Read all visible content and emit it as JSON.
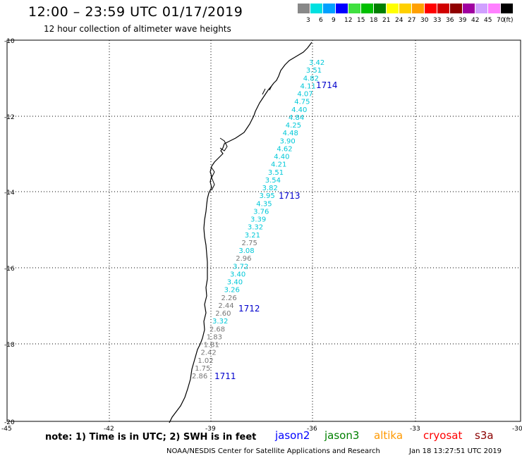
{
  "header": {
    "title": "12:00 – 23:59 UTC 01/17/2019",
    "subtitle": "12 hour collection of altimeter wave heights"
  },
  "legend": {
    "unit": "(ft)",
    "bins": [
      {
        "label": "3",
        "color": "#888888"
      },
      {
        "label": "6",
        "color": "#00e0e0"
      },
      {
        "label": "9",
        "color": "#00a0ff"
      },
      {
        "label": "12",
        "color": "#0000ff"
      },
      {
        "label": "15",
        "color": "#40e040"
      },
      {
        "label": "18",
        "color": "#00c000"
      },
      {
        "label": "21",
        "color": "#008000"
      },
      {
        "label": "24",
        "color": "#ffff00"
      },
      {
        "label": "27",
        "color": "#ffd000"
      },
      {
        "label": "30",
        "color": "#ffa000"
      },
      {
        "label": "33",
        "color": "#ff0000"
      },
      {
        "label": "36",
        "color": "#d00000"
      },
      {
        "label": "39",
        "color": "#900000"
      },
      {
        "label": "42",
        "color": "#a000a0"
      },
      {
        "label": "45",
        "color": "#d0a0ff"
      },
      {
        "label": "70",
        "color": "#ff80ff"
      },
      {
        "label": "",
        "color": "#000000"
      }
    ]
  },
  "map": {
    "lon_labels": [
      "-45",
      "-42",
      "-39",
      "-36",
      "-33",
      "-30"
    ],
    "lat_labels": [
      "-10",
      "-12",
      "-14",
      "-16",
      "-18",
      "-20"
    ],
    "passes": [
      {
        "id": "1714",
        "color": "#0000cc"
      },
      {
        "id": "1713",
        "color": "#0000cc"
      },
      {
        "id": "1712",
        "color": "#0000cc"
      },
      {
        "id": "1711",
        "color": "#0000cc"
      }
    ],
    "wave_heights": [
      {
        "v": "3.42",
        "c": "#00c8d8"
      },
      {
        "v": "3.51",
        "c": "#00c8d8"
      },
      {
        "v": "4.82",
        "c": "#00c8d8"
      },
      {
        "v": "4.11",
        "c": "#00c8d8"
      },
      {
        "v": "4.07",
        "c": "#00c8d8"
      },
      {
        "v": "4.75",
        "c": "#00c8d8"
      },
      {
        "v": "4.40",
        "c": "#00c8d8"
      },
      {
        "v": "4.84",
        "c": "#00c8d8"
      },
      {
        "v": "4.25",
        "c": "#00c8d8"
      },
      {
        "v": "4.48",
        "c": "#00c8d8"
      },
      {
        "v": "3.90",
        "c": "#00c8d8"
      },
      {
        "v": "4.62",
        "c": "#00c8d8"
      },
      {
        "v": "4.40",
        "c": "#00c8d8"
      },
      {
        "v": "4.21",
        "c": "#00c8d8"
      },
      {
        "v": "3.51",
        "c": "#00c8d8"
      },
      {
        "v": "3.54",
        "c": "#00c8d8"
      },
      {
        "v": "3.82",
        "c": "#00c8d8"
      },
      {
        "v": "3.95",
        "c": "#00c8d8"
      },
      {
        "v": "4.35",
        "c": "#00c8d8"
      },
      {
        "v": "3.76",
        "c": "#00c8d8"
      },
      {
        "v": "3.39",
        "c": "#00c8d8"
      },
      {
        "v": "3.32",
        "c": "#00c8d8"
      },
      {
        "v": "3.21",
        "c": "#00c8d8"
      },
      {
        "v": "2.75",
        "c": "#777777"
      },
      {
        "v": "3.08",
        "c": "#00c8d8"
      },
      {
        "v": "2.96",
        "c": "#777777"
      },
      {
        "v": "3.72",
        "c": "#00c8d8"
      },
      {
        "v": "3.40",
        "c": "#00c8d8"
      },
      {
        "v": "3.40",
        "c": "#00c8d8"
      },
      {
        "v": "3.26",
        "c": "#00c8d8"
      },
      {
        "v": "2.26",
        "c": "#777777"
      },
      {
        "v": "2.44",
        "c": "#777777"
      },
      {
        "v": "2.60",
        "c": "#777777"
      },
      {
        "v": "3.32",
        "c": "#00c8d8"
      },
      {
        "v": "2.68",
        "c": "#777777"
      },
      {
        "v": "1.83",
        "c": "#777777"
      },
      {
        "v": "1.81",
        "c": "#777777"
      },
      {
        "v": "2.42",
        "c": "#777777"
      },
      {
        "v": "1.02",
        "c": "#777777"
      },
      {
        "v": "1.75",
        "c": "#777777"
      },
      {
        "v": "2.86",
        "c": "#777777"
      }
    ]
  },
  "footer": {
    "note": "note: 1) Time is in UTC; 2) SWH is in feet",
    "satellites": [
      {
        "name": "jason2",
        "color": "#0000ff"
      },
      {
        "name": "jason3",
        "color": "#008000"
      },
      {
        "name": "altika",
        "color": "#ff9900"
      },
      {
        "name": "cryosat",
        "color": "#ff0000"
      },
      {
        "name": "s3a",
        "color": "#8b0000"
      }
    ],
    "credit": "NOAA/NESDIS Center for Satellite Applications and Research",
    "timestamp": "Jan 18 13:27:51 UTC 2019"
  }
}
